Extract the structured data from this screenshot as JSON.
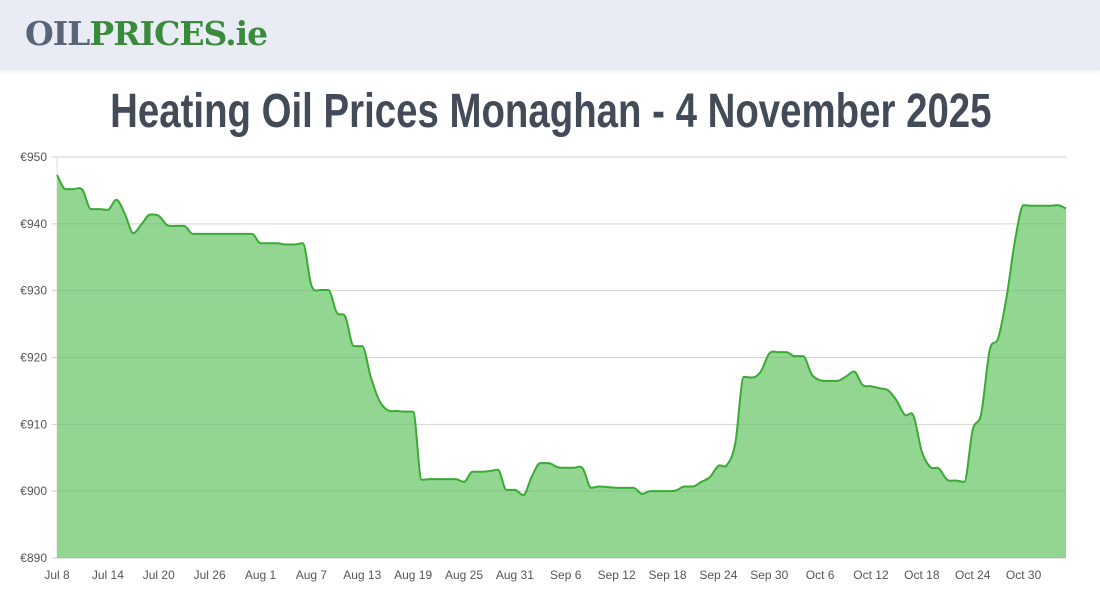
{
  "header": {
    "logo_part1": "OIL",
    "logo_part2": "PRICES.ie"
  },
  "title": "Heating Oil Prices Monaghan - 4 November 2025",
  "colors": {
    "line": "#3aaa35",
    "fill": "#92d692",
    "grid": "#e2e2e2",
    "logo_gray": "#5a6478",
    "logo_green": "#3a8a3c",
    "title": "#434a58"
  },
  "chart_data": {
    "type": "area",
    "title": "",
    "xlabel": "",
    "ylabel": "",
    "ylim": [
      890,
      950
    ],
    "y_ticks": [
      "€890",
      "€900",
      "€910",
      "€920",
      "€930",
      "€940",
      "€950"
    ],
    "y_tick_values": [
      890,
      900,
      910,
      920,
      930,
      940,
      950
    ],
    "x_ticks": [
      "Jul 8",
      "Jul 14",
      "Jul 20",
      "Jul 26",
      "Aug 1",
      "Aug 7",
      "Aug 13",
      "Aug 19",
      "Aug 25",
      "Aug 31",
      "Sep 6",
      "Sep 12",
      "Sep 18",
      "Sep 24",
      "Sep 30",
      "Oct 6",
      "Oct 12",
      "Oct 18",
      "Oct 24",
      "Oct 30"
    ],
    "x_range": [
      "2025-07-08",
      "2025-11-04"
    ],
    "grid": true,
    "legend": "none",
    "x": [
      "2025-07-08",
      "2025-07-09",
      "2025-07-10",
      "2025-07-11",
      "2025-07-12",
      "2025-07-13",
      "2025-07-14",
      "2025-07-15",
      "2025-07-16",
      "2025-07-17",
      "2025-07-18",
      "2025-07-19",
      "2025-07-20",
      "2025-07-21",
      "2025-07-22",
      "2025-07-23",
      "2025-07-24",
      "2025-07-25",
      "2025-07-26",
      "2025-07-27",
      "2025-07-28",
      "2025-07-29",
      "2025-07-30",
      "2025-07-31",
      "2025-08-01",
      "2025-08-02",
      "2025-08-03",
      "2025-08-04",
      "2025-08-05",
      "2025-08-06",
      "2025-08-07",
      "2025-08-08",
      "2025-08-09",
      "2025-08-10",
      "2025-08-11",
      "2025-08-12",
      "2025-08-13",
      "2025-08-14",
      "2025-08-15",
      "2025-08-16",
      "2025-08-17",
      "2025-08-18",
      "2025-08-19",
      "2025-08-20",
      "2025-08-21",
      "2025-08-22",
      "2025-08-23",
      "2025-08-24",
      "2025-08-25",
      "2025-08-26",
      "2025-08-27",
      "2025-08-28",
      "2025-08-29",
      "2025-08-30",
      "2025-08-31",
      "2025-09-01",
      "2025-09-02",
      "2025-09-03",
      "2025-09-04",
      "2025-09-05",
      "2025-09-06",
      "2025-09-07",
      "2025-09-08",
      "2025-09-09",
      "2025-09-10",
      "2025-09-11",
      "2025-09-12",
      "2025-09-13",
      "2025-09-14",
      "2025-09-15",
      "2025-09-16",
      "2025-09-17",
      "2025-09-18",
      "2025-09-19",
      "2025-09-20",
      "2025-09-21",
      "2025-09-22",
      "2025-09-23",
      "2025-09-24",
      "2025-09-25",
      "2025-09-26",
      "2025-09-27",
      "2025-09-28",
      "2025-09-29",
      "2025-09-30",
      "2025-10-01",
      "2025-10-02",
      "2025-10-03",
      "2025-10-04",
      "2025-10-05",
      "2025-10-06",
      "2025-10-07",
      "2025-10-08",
      "2025-10-09",
      "2025-10-10",
      "2025-10-11",
      "2025-10-12",
      "2025-10-13",
      "2025-10-14",
      "2025-10-15",
      "2025-10-16",
      "2025-10-17",
      "2025-10-18",
      "2025-10-19",
      "2025-10-20",
      "2025-10-21",
      "2025-10-22",
      "2025-10-23",
      "2025-10-24",
      "2025-10-25",
      "2025-10-26",
      "2025-10-27",
      "2025-10-28",
      "2025-10-29",
      "2025-10-30",
      "2025-10-31",
      "2025-11-01",
      "2025-11-02",
      "2025-11-03",
      "2025-11-04"
    ],
    "values": [
      947.3,
      945.2,
      945.2,
      945.1,
      942.2,
      942.2,
      942.1,
      943.6,
      941.5,
      938.6,
      940.0,
      941.4,
      941.2,
      939.8,
      939.7,
      939.7,
      938.5,
      938.5,
      938.5,
      938.5,
      938.5,
      938.5,
      938.5,
      938.5,
      937.1,
      937.1,
      937.1,
      936.9,
      936.9,
      937.1,
      930.8,
      930.1,
      930.1,
      926.7,
      926.1,
      921.7,
      921.7,
      917.1,
      913.6,
      912.1,
      912.0,
      911.9,
      911.9,
      901.7,
      901.8,
      901.8,
      901.8,
      901.8,
      901.4,
      902.9,
      902.9,
      903.0,
      903.2,
      900.2,
      900.2,
      899.4,
      902.2,
      904.2,
      904.2,
      903.6,
      903.5,
      903.5,
      903.4,
      900.5,
      900.7,
      900.6,
      900.5,
      900.5,
      900.5,
      899.6,
      900.0,
      900.0,
      900.0,
      900.1,
      900.7,
      900.7,
      901.4,
      902.1,
      903.8,
      903.9,
      907.2,
      917.1,
      917.0,
      917.9,
      920.6,
      920.8,
      920.8,
      920.2,
      920.2,
      917.5,
      916.6,
      916.5,
      916.5,
      917.1,
      917.9,
      915.9,
      915.7,
      915.4,
      915.1,
      913.6,
      911.4,
      911.3,
      905.9,
      903.6,
      903.4,
      901.7,
      901.6,
      901.4,
      909.2,
      911.6,
      921.1,
      922.9,
      929.1,
      937.6,
      942.8,
      942.7,
      942.7,
      942.7,
      942.8,
      942.3
    ]
  }
}
